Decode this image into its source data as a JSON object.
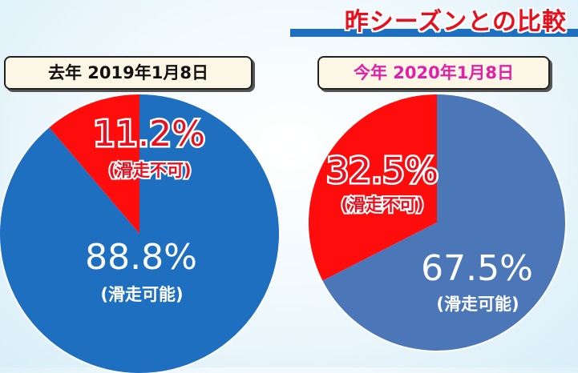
{
  "title": "昨シーズンとの比較",
  "chart_data": [
    {
      "type": "pie",
      "title": "去年 2019年1月8日",
      "slices": [
        {
          "label": "(滑走不可)",
          "value": 11.2,
          "value_text": "11.2%",
          "color": "#ff0d0d"
        },
        {
          "label": "(滑走可能)",
          "value": 88.8,
          "value_text": "88.8%",
          "color": "#1f6fc0"
        }
      ]
    },
    {
      "type": "pie",
      "title": "今年 2020年1月8日",
      "slices": [
        {
          "label": "(滑走不可)",
          "value": 32.5,
          "value_text": "32.5%",
          "color": "#ff0d0d"
        },
        {
          "label": "(滑走可能)",
          "value": 67.5,
          "value_text": "67.5%",
          "color": "#4b76b8"
        }
      ]
    }
  ]
}
